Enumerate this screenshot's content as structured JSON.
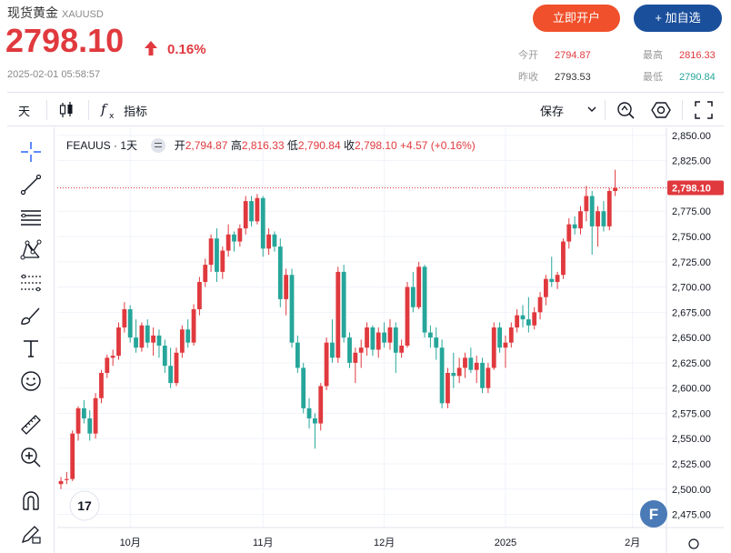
{
  "header": {
    "name": "现货黄金",
    "symbol": "XAUUSD",
    "price": "2798.10",
    "change_pct": "0.16%",
    "timestamp": "2025-02-01 05:58:57",
    "open_account_label": "立即开户",
    "add_watch_label": "+ 加自选",
    "stats": {
      "today_open_label": "今开",
      "today_open": "2794.87",
      "prev_close_label": "昨收",
      "prev_close": "2793.53",
      "high_label": "最高",
      "high": "2816.33",
      "low_label": "最低",
      "low": "2790.84"
    },
    "colors": {
      "up": "#e0393e",
      "down": "#26a69a",
      "open_btn": "#f0502b",
      "watch_btn": "#1a4f9c"
    }
  },
  "toolbar": {
    "interval_label": "天",
    "indicator_label": "指标",
    "save_label": "保存",
    "icons": [
      "candles-icon",
      "function-icon",
      "chevron-down-icon",
      "alert-icon",
      "settings-icon",
      "fullscreen-icon"
    ]
  },
  "left_tools": [
    "crosshair-icon",
    "trend-line-icon",
    "horizontal-lines-icon",
    "pattern-icon",
    "fib-icon",
    "brush-icon",
    "text-icon",
    "emoji-icon",
    "ruler-icon",
    "zoom-in-icon",
    "magnet-icon",
    "pencil-lock-icon"
  ],
  "legend": {
    "symbol": "FEAUUS",
    "interval": "1天",
    "open_label": "开",
    "open": "2,794.87",
    "high_label": "高",
    "high": "2,816.33",
    "low_label": "低",
    "low": "2,790.84",
    "close_label": "收",
    "close": "2,798.10",
    "change": "+4.57",
    "change_pct": "(+0.16%)"
  },
  "chart_data": {
    "type": "candlestick",
    "y_axis": {
      "min": 2462,
      "max": 2858,
      "ticks": [
        "2,475.00",
        "2,500.00",
        "2,525.00",
        "2,550.00",
        "2,575.00",
        "2,600.00",
        "2,625.00",
        "2,650.00",
        "2,675.00",
        "2,700.00",
        "2,725.00",
        "2,750.00",
        "2,775.00",
        "2,800.00",
        "2,825.00",
        "2,850.00"
      ]
    },
    "x_axis_labels": [
      {
        "label": "10月",
        "index": 12
      },
      {
        "label": "11月",
        "index": 35
      },
      {
        "label": "12月",
        "index": 56
      },
      {
        "label": "2025",
        "index": 77
      },
      {
        "label": "2月",
        "index": 99
      }
    ],
    "last_price_label": "2,798.10",
    "last_price": 2798.1,
    "ohlc": [
      [
        2505,
        2512,
        2500,
        2508
      ],
      [
        2509,
        2517,
        2505,
        2510
      ],
      [
        2510,
        2558,
        2508,
        2555
      ],
      [
        2555,
        2582,
        2548,
        2580
      ],
      [
        2580,
        2588,
        2565,
        2570
      ],
      [
        2570,
        2578,
        2548,
        2555
      ],
      [
        2555,
        2595,
        2550,
        2590
      ],
      [
        2590,
        2618,
        2585,
        2615
      ],
      [
        2615,
        2633,
        2610,
        2630
      ],
      [
        2630,
        2638,
        2622,
        2632
      ],
      [
        2632,
        2665,
        2628,
        2660
      ],
      [
        2660,
        2685,
        2655,
        2678
      ],
      [
        2678,
        2682,
        2645,
        2650
      ],
      [
        2650,
        2668,
        2635,
        2640
      ],
      [
        2640,
        2665,
        2636,
        2662
      ],
      [
        2662,
        2668,
        2640,
        2645
      ],
      [
        2645,
        2660,
        2632,
        2652
      ],
      [
        2652,
        2658,
        2630,
        2642
      ],
      [
        2642,
        2648,
        2615,
        2622
      ],
      [
        2622,
        2640,
        2600,
        2605
      ],
      [
        2605,
        2640,
        2602,
        2635
      ],
      [
        2635,
        2662,
        2630,
        2658
      ],
      [
        2658,
        2668,
        2640,
        2645
      ],
      [
        2645,
        2683,
        2642,
        2678
      ],
      [
        2678,
        2710,
        2672,
        2705
      ],
      [
        2705,
        2728,
        2700,
        2722
      ],
      [
        2722,
        2752,
        2715,
        2748
      ],
      [
        2748,
        2758,
        2705,
        2715
      ],
      [
        2715,
        2740,
        2708,
        2736
      ],
      [
        2736,
        2762,
        2730,
        2752
      ],
      [
        2752,
        2755,
        2735,
        2745
      ],
      [
        2745,
        2762,
        2740,
        2758
      ],
      [
        2758,
        2790,
        2752,
        2785
      ],
      [
        2785,
        2790,
        2760,
        2765
      ],
      [
        2765,
        2792,
        2762,
        2788
      ],
      [
        2788,
        2790,
        2730,
        2738
      ],
      [
        2738,
        2758,
        2732,
        2752
      ],
      [
        2752,
        2755,
        2735,
        2740
      ],
      [
        2740,
        2748,
        2680,
        2688
      ],
      [
        2688,
        2718,
        2672,
        2712
      ],
      [
        2712,
        2718,
        2640,
        2645
      ],
      [
        2645,
        2652,
        2615,
        2620
      ],
      [
        2620,
        2625,
        2575,
        2580
      ],
      [
        2580,
        2590,
        2560,
        2570
      ],
      [
        2570,
        2575,
        2540,
        2565
      ],
      [
        2565,
        2605,
        2558,
        2602
      ],
      [
        2602,
        2650,
        2598,
        2645
      ],
      [
        2645,
        2668,
        2625,
        2630
      ],
      [
        2630,
        2720,
        2625,
        2715
      ],
      [
        2715,
        2722,
        2645,
        2650
      ],
      [
        2650,
        2655,
        2620,
        2625
      ],
      [
        2625,
        2640,
        2605,
        2635
      ],
      [
        2635,
        2648,
        2620,
        2640
      ],
      [
        2640,
        2665,
        2632,
        2660
      ],
      [
        2660,
        2662,
        2632,
        2638
      ],
      [
        2638,
        2660,
        2630,
        2655
      ],
      [
        2655,
        2665,
        2640,
        2645
      ],
      [
        2645,
        2668,
        2638,
        2660
      ],
      [
        2660,
        2665,
        2615,
        2635
      ],
      [
        2635,
        2648,
        2630,
        2642
      ],
      [
        2642,
        2705,
        2640,
        2700
      ],
      [
        2700,
        2715,
        2675,
        2680
      ],
      [
        2680,
        2725,
        2678,
        2720
      ],
      [
        2720,
        2722,
        2650,
        2655
      ],
      [
        2655,
        2662,
        2640,
        2650
      ],
      [
        2650,
        2660,
        2628,
        2640
      ],
      [
        2640,
        2648,
        2580,
        2585
      ],
      [
        2585,
        2620,
        2580,
        2615
      ],
      [
        2615,
        2635,
        2600,
        2612
      ],
      [
        2612,
        2630,
        2605,
        2620
      ],
      [
        2620,
        2635,
        2610,
        2630
      ],
      [
        2630,
        2640,
        2615,
        2618
      ],
      [
        2618,
        2632,
        2605,
        2625
      ],
      [
        2625,
        2630,
        2595,
        2600
      ],
      [
        2600,
        2625,
        2595,
        2620
      ],
      [
        2620,
        2665,
        2618,
        2660
      ],
      [
        2660,
        2665,
        2635,
        2640
      ],
      [
        2640,
        2652,
        2620,
        2645
      ],
      [
        2645,
        2665,
        2640,
        2660
      ],
      [
        2660,
        2678,
        2655,
        2672
      ],
      [
        2672,
        2682,
        2660,
        2668
      ],
      [
        2668,
        2690,
        2655,
        2662
      ],
      [
        2662,
        2680,
        2658,
        2675
      ],
      [
        2675,
        2695,
        2668,
        2690
      ],
      [
        2690,
        2712,
        2682,
        2708
      ],
      [
        2708,
        2730,
        2700,
        2705
      ],
      [
        2705,
        2715,
        2698,
        2712
      ],
      [
        2712,
        2748,
        2708,
        2745
      ],
      [
        2745,
        2768,
        2738,
        2762
      ],
      [
        2762,
        2770,
        2752,
        2758
      ],
      [
        2758,
        2780,
        2752,
        2775
      ],
      [
        2775,
        2800,
        2765,
        2790
      ],
      [
        2790,
        2795,
        2732,
        2760
      ],
      [
        2760,
        2780,
        2740,
        2775
      ],
      [
        2775,
        2785,
        2755,
        2760
      ],
      [
        2760,
        2798,
        2756,
        2795
      ],
      [
        2795,
        2816,
        2790,
        2798
      ]
    ]
  }
}
